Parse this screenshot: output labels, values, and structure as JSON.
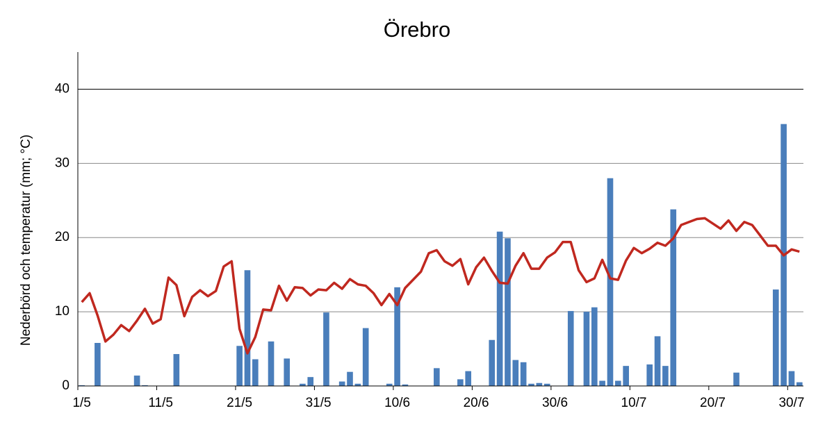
{
  "chart_data": {
    "type": "combo",
    "title": "Örebro",
    "y_label": "Nederbörd och temperatur (mm; °C)",
    "categories": [
      "1/5",
      null,
      null,
      null,
      null,
      null,
      null,
      null,
      null,
      null,
      "11/5",
      null,
      null,
      null,
      null,
      null,
      null,
      null,
      null,
      null,
      "21/5",
      null,
      null,
      null,
      null,
      null,
      null,
      null,
      null,
      null,
      "31/5",
      null,
      null,
      null,
      null,
      null,
      null,
      null,
      null,
      null,
      "10/6",
      null,
      null,
      null,
      null,
      null,
      null,
      null,
      null,
      null,
      "20/6",
      null,
      null,
      null,
      null,
      null,
      null,
      null,
      null,
      null,
      "30/6",
      null,
      null,
      null,
      null,
      null,
      null,
      null,
      null,
      null,
      "10/7",
      null,
      null,
      null,
      null,
      null,
      null,
      null,
      null,
      null,
      "20/7",
      null,
      null,
      null,
      null,
      null,
      null,
      null,
      null,
      null,
      "30/7",
      null
    ],
    "series": [
      {
        "type": "bar",
        "color": "#4a7ebb",
        "values": [
          0.1,
          0,
          5.8,
          0,
          0,
          0,
          0,
          1.4,
          0.1,
          0,
          0,
          0,
          4.3,
          0,
          0,
          0,
          0,
          0,
          0,
          0,
          5.4,
          15.6,
          3.6,
          0,
          6.0,
          0,
          3.7,
          0,
          0.3,
          1.2,
          0,
          9.9,
          0,
          0.6,
          1.9,
          0.3,
          7.8,
          0,
          0,
          0.3,
          13.3,
          0.2,
          0,
          0,
          0,
          2.4,
          0,
          0,
          0.9,
          2.0,
          0,
          0,
          6.2,
          20.8,
          19.9,
          3.5,
          3.2,
          0.3,
          0.4,
          0.3,
          0,
          0,
          10.1,
          0,
          10.0,
          10.6,
          0.7,
          28.0,
          0.7,
          2.7,
          0,
          0,
          2.9,
          6.7,
          2.7,
          23.8,
          0,
          0,
          0,
          0,
          0,
          0,
          0,
          1.8,
          0,
          0,
          0,
          0,
          13.0,
          35.3,
          2.0,
          0.5
        ]
      },
      {
        "type": "line",
        "color": "#c0281f",
        "values": [
          11.3,
          12.5,
          9.5,
          6.0,
          6.9,
          8.2,
          7.4,
          8.8,
          10.4,
          8.4,
          9.0,
          14.6,
          13.6,
          9.4,
          12.0,
          12.9,
          12.1,
          12.8,
          16.1,
          16.8,
          7.7,
          4.4,
          6.6,
          10.3,
          10.2,
          13.5,
          11.5,
          13.3,
          13.2,
          12.2,
          13.0,
          12.9,
          13.9,
          13.1,
          14.4,
          13.7,
          13.5,
          12.5,
          10.9,
          12.4,
          10.9,
          13.2,
          14.3,
          15.4,
          17.9,
          18.3,
          16.8,
          16.2,
          17.1,
          13.7,
          16.0,
          17.3,
          15.5,
          13.9,
          13.8,
          16.2,
          17.9,
          15.8,
          15.8,
          17.3,
          18.0,
          19.4,
          19.4,
          15.6,
          14.0,
          14.5,
          17.0,
          14.5,
          14.3,
          16.9,
          18.6,
          17.9,
          18.5,
          19.3,
          18.9,
          19.9,
          21.7,
          22.1,
          22.5,
          22.6,
          21.9,
          21.2,
          22.3,
          20.9,
          22.1,
          21.7,
          20.3,
          18.9,
          18.9,
          17.6,
          18.4,
          18.1
        ]
      }
    ],
    "ylim": [
      0,
      45
    ],
    "yticks": [
      0,
      10,
      20,
      30,
      40
    ],
    "grid": true
  }
}
